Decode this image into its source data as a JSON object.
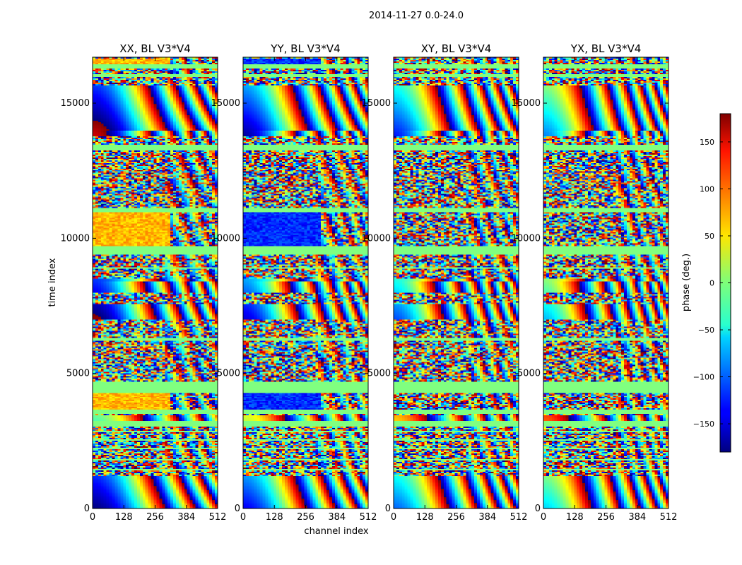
{
  "chart_data": {
    "type": "heatmap",
    "suptitle": "2014-11-27 0.0-24.0",
    "xlabel": "channel index",
    "ylabel": "time index",
    "xlim": [
      0,
      512
    ],
    "ylim": [
      0,
      16700
    ],
    "xticks": [
      0,
      128,
      256,
      384,
      512
    ],
    "xtick_labels": [
      "0",
      "128",
      "256",
      "384",
      "512"
    ],
    "yticks": [
      0,
      5000,
      10000,
      15000
    ],
    "ytick_labels": [
      "0",
      "5000",
      "10000",
      "15000"
    ],
    "colormap": "jet",
    "colorbar": {
      "label": "phase (deg.)",
      "range": [
        -180,
        180
      ],
      "ticks": [
        -150,
        -100,
        -50,
        0,
        50,
        100,
        150
      ],
      "tick_labels": [
        "−150",
        "−100",
        "−50",
        "0",
        "50",
        "100",
        "150"
      ]
    },
    "panels": [
      {
        "title": "XX, BL V3*V4",
        "base_phase_deg": 70
      },
      {
        "title": "YY, BL V3*V4",
        "base_phase_deg": -120
      },
      {
        "title": "XY, BL V3*V4",
        "base_phase_deg": null
      },
      {
        "title": "YX, BL V3*V4",
        "base_phase_deg": null
      }
    ],
    "flagged_value_deg": 0,
    "flagged_time_bands": [
      [
        16300,
        16480
      ],
      [
        15980,
        16080
      ],
      [
        13300,
        13500
      ],
      [
        11000,
        11150
      ],
      [
        9400,
        9700
      ],
      [
        8900,
        8950
      ],
      [
        6200,
        6300
      ],
      [
        4300,
        4700
      ],
      [
        3500,
        3650
      ],
      [
        3050,
        3250
      ],
      [
        2800,
        2870
      ],
      [
        2500,
        2560
      ],
      [
        2200,
        2260
      ],
      [
        1800,
        1850
      ],
      [
        1400,
        1460
      ]
    ],
    "fringe_time_bands": [
      [
        13800,
        15700
      ],
      [
        8000,
        8500
      ],
      [
        7000,
        7600
      ],
      [
        3200,
        3450
      ],
      [
        0,
        1200
      ]
    ],
    "steady_phase_time_bands": [
      [
        16480,
        16700
      ],
      [
        9700,
        11000
      ],
      [
        3650,
        4300
      ]
    ]
  }
}
